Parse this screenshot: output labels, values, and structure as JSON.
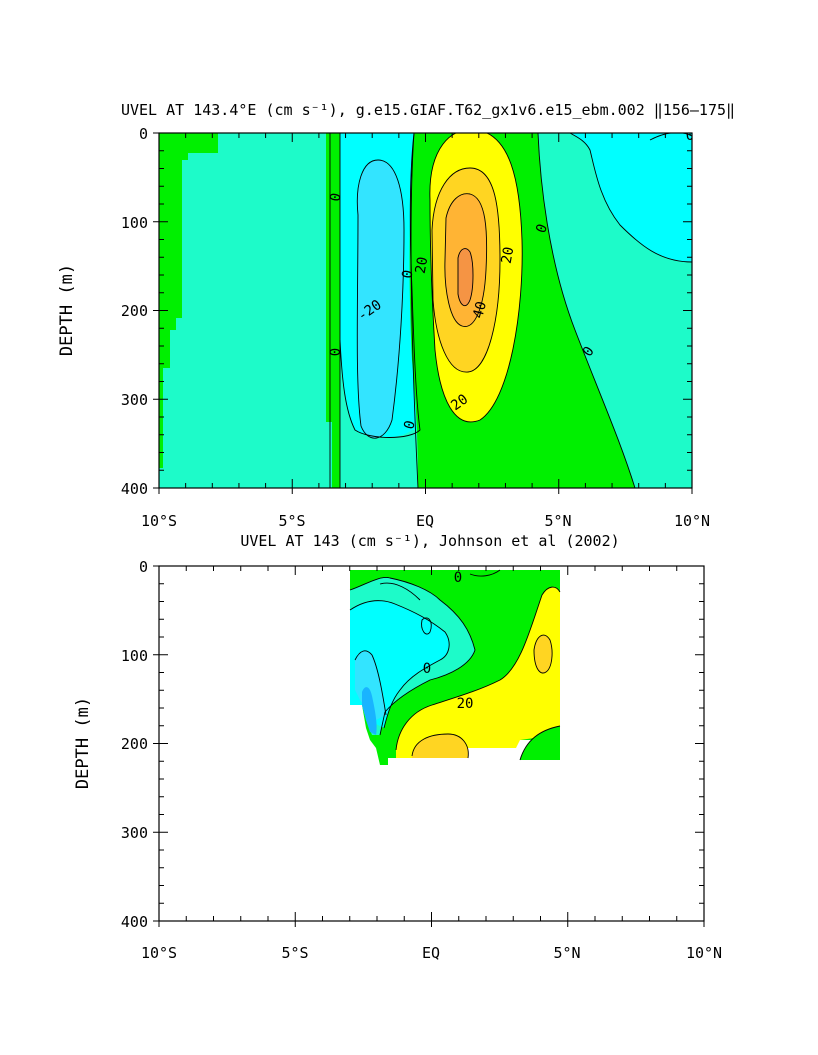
{
  "chart_data": [
    {
      "type": "contour",
      "title": "UVEL AT 143.4°E (cm s⁻¹), g.e15.GIAF.T62_gx1v6.e15_ebm.002 ‖156–175‖",
      "xlabel": "",
      "ylabel": "DEPTH (m)",
      "x_ticks": [
        "10°S",
        "5°S",
        "EQ",
        "5°N",
        "10°N"
      ],
      "y_ticks": [
        "0",
        "100",
        "200",
        "300",
        "400"
      ],
      "xlim": [
        -10,
        10
      ],
      "ylim": [
        0,
        400
      ],
      "y_inverted": true,
      "grid": false,
      "contour_interval": 10,
      "contour_labels": [
        "0",
        "0",
        "0",
        "0",
        "0",
        "0",
        "0",
        "-20",
        "20",
        "20",
        "20",
        "40"
      ],
      "fill_colors": {
        "-30": "#19b4ff",
        "-20": "#33e4ff",
        "-10": "#00ffff",
        "0": "#1dfbc9",
        "10": "#00f000",
        "20": "#ffff00",
        "30": "#ffd522",
        "40": "#ffb434",
        "50": "#f59444"
      },
      "land_color": "#00f000",
      "data_max": 50,
      "data_min": -20
    },
    {
      "type": "contour",
      "title": "UVEL AT 143 (cm s⁻¹), Johnson et al (2002)",
      "xlabel": "",
      "ylabel": "DEPTH (m)",
      "x_ticks": [
        "10°S",
        "5°S",
        "EQ",
        "5°N",
        "10°N"
      ],
      "y_ticks": [
        "0",
        "100",
        "200",
        "300",
        "400"
      ],
      "xlim": [
        -10,
        10
      ],
      "ylim": [
        0,
        400
      ],
      "y_inverted": true,
      "grid": false,
      "data_extent": {
        "lat": [
          -2.8,
          5.0
        ],
        "depth": [
          0,
          220
        ]
      },
      "contour_interval": 10,
      "contour_labels": [
        "0",
        "0",
        "20"
      ],
      "fill_colors": {
        "-30": "#19b4ff",
        "-20": "#33e4ff",
        "-10": "#00ffff",
        "0": "#1dfbc9",
        "10": "#00f000",
        "20": "#ffff00",
        "30": "#ffd522"
      },
      "data_max": 30,
      "data_min": -30
    }
  ]
}
